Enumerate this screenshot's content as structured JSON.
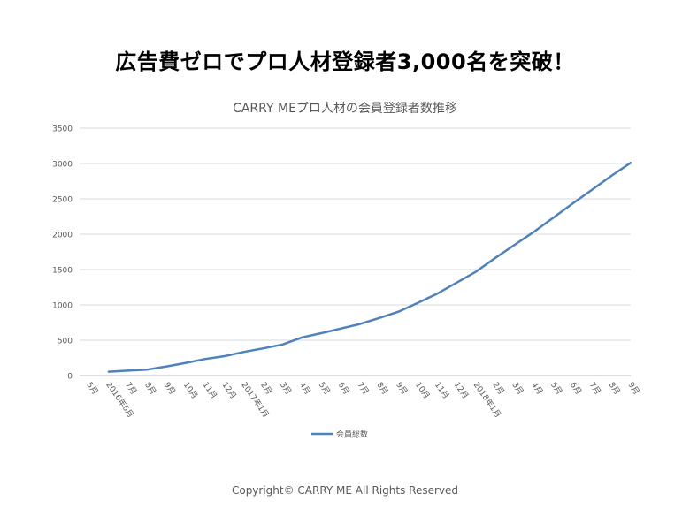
{
  "headline": "広告費ゼロでプロ人材登録者3,000名を突破！",
  "footer": "Copyright© CARRY ME All Rights Reserved",
  "chart_data": {
    "type": "line",
    "title": "CARRY MEプロ人材の会員登録者数推移",
    "xlabel": "",
    "ylabel": "",
    "ylim": [
      0,
      3500
    ],
    "yticks": [
      0,
      500,
      1000,
      1500,
      2000,
      2500,
      3000,
      3500
    ],
    "grid": true,
    "legend_position": "bottom",
    "categories": [
      "5月",
      "2016年6月",
      "7月",
      "8月",
      "9月",
      "10月",
      "11月",
      "12月",
      "2017年1月",
      "2月",
      "3月",
      "4月",
      "5月",
      "6月",
      "7月",
      "8月",
      "9月",
      "10月",
      "11月",
      "12月",
      "2018年1月",
      "2月",
      "3月",
      "4月",
      "5月",
      "6月",
      "7月",
      "8月",
      "9月"
    ],
    "series": [
      {
        "name": "会員総数",
        "color": "#4F81BD",
        "values": [
          null,
          55,
          70,
          85,
          130,
          180,
          235,
          275,
          335,
          385,
          440,
          540,
          600,
          665,
          730,
          815,
          905,
          1030,
          1160,
          1315,
          1470,
          1665,
          1850,
          2035,
          2235,
          2435,
          2630,
          2825,
          3010
        ]
      }
    ]
  }
}
